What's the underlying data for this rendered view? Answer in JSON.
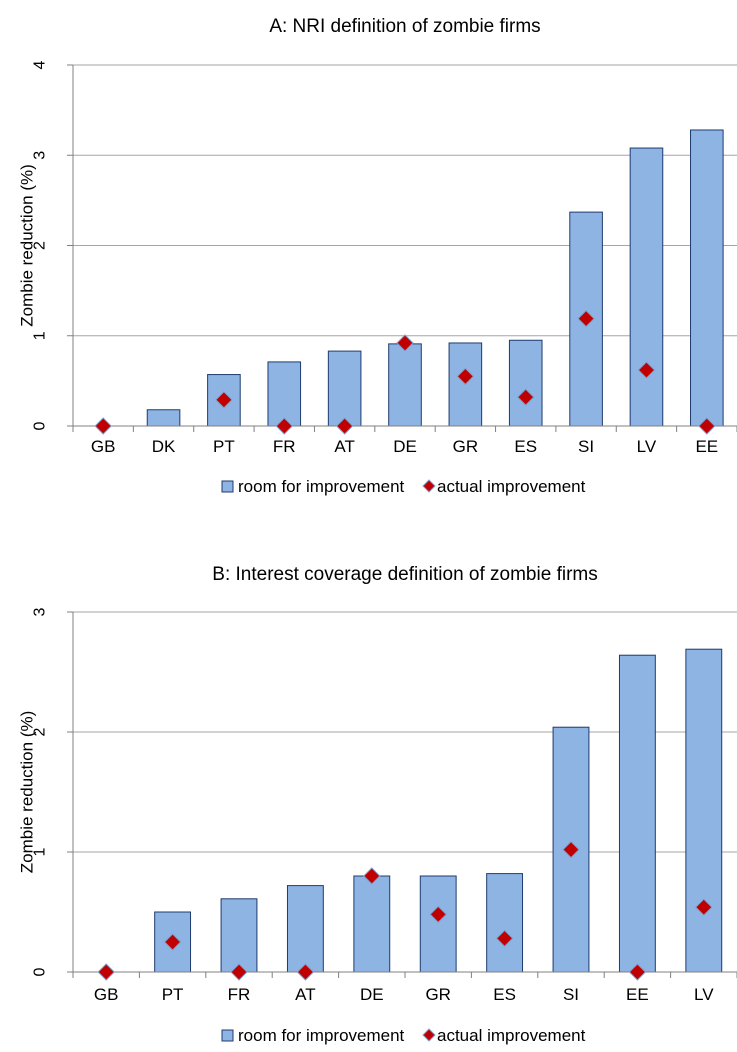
{
  "colors": {
    "bar_fill": "#8EB4E3",
    "bar_stroke": "#1F3B6E",
    "marker_fill": "#C00000",
    "marker_stroke": "#7F9FCC",
    "grid": "#A6A6A6",
    "axis": "#808080"
  },
  "chart_data": [
    {
      "type": "bar",
      "title": "A: NRI definition of zombie firms",
      "ylabel": "Zombie reduction (%)",
      "xlabel": "",
      "ylim": [
        0,
        4
      ],
      "yticks": [
        0,
        1,
        2,
        3,
        4
      ],
      "grid": true,
      "legend_position": "bottom",
      "categories": [
        "GB",
        "DK",
        "PT",
        "FR",
        "AT",
        "DE",
        "GR",
        "ES",
        "SI",
        "LV",
        "EE"
      ],
      "series": [
        {
          "name": "room for improvement",
          "kind": "bar",
          "values": [
            0,
            0.18,
            0.57,
            0.71,
            0.83,
            0.91,
            0.92,
            0.95,
            2.37,
            3.08,
            3.28
          ]
        },
        {
          "name": "actual improvement",
          "kind": "marker",
          "values": [
            0,
            null,
            0.29,
            0,
            0,
            0.92,
            0.55,
            0.32,
            1.19,
            0.62,
            0
          ]
        }
      ]
    },
    {
      "type": "bar",
      "title": "B: Interest coverage definition of zombie firms",
      "ylabel": "Zombie reduction (%)",
      "xlabel": "",
      "ylim": [
        0,
        3
      ],
      "yticks": [
        0,
        1,
        2,
        3
      ],
      "grid": true,
      "legend_position": "bottom",
      "categories": [
        "GB",
        "PT",
        "FR",
        "AT",
        "DE",
        "GR",
        "ES",
        "SI",
        "EE",
        "LV"
      ],
      "series": [
        {
          "name": "room for improvement",
          "kind": "bar",
          "values": [
            0,
            0.5,
            0.61,
            0.72,
            0.8,
            0.8,
            0.82,
            2.04,
            2.64,
            2.69
          ]
        },
        {
          "name": "actual improvement",
          "kind": "marker",
          "values": [
            0,
            0.25,
            0,
            0,
            0.8,
            0.48,
            0.28,
            1.02,
            0,
            0.54
          ]
        }
      ]
    }
  ]
}
